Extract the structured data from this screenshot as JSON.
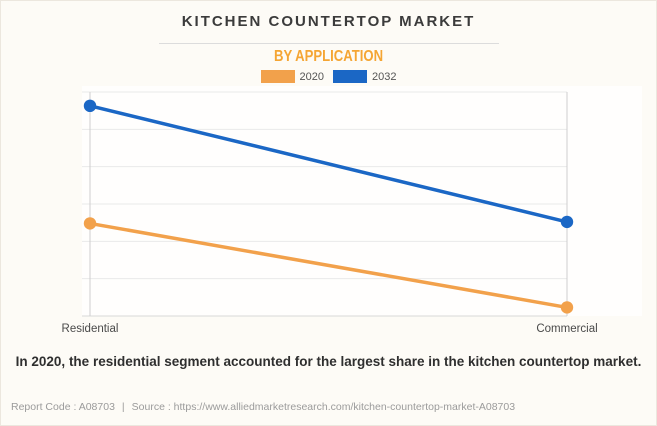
{
  "header": {
    "title": "KITCHEN COUNTERTOP MARKET",
    "subtitle": "BY APPLICATION"
  },
  "legend": [
    {
      "label": "2020",
      "color": "#F2A14B"
    },
    {
      "label": "2032",
      "color": "#1B67C5"
    }
  ],
  "chart_data": {
    "type": "line",
    "categories": [
      "Residential",
      "Commercial"
    ],
    "series": [
      {
        "name": "2020",
        "color": "#F2A14B",
        "values": [
          2.48,
          0.23
        ]
      },
      {
        "name": "2032",
        "color": "#1B67C5",
        "values": [
          5.63,
          2.52
        ]
      }
    ],
    "title": "KITCHEN COUNTERTOP MARKET",
    "subtitle": "BY APPLICATION",
    "xlabel": "",
    "ylabel": "",
    "ylim": [
      0,
      6
    ],
    "y_axis_labels_shown": false,
    "grid": true,
    "legend_position": "top",
    "marker": "circle",
    "axis_note": "y-axis has no printed tick labels; values estimated in gridline units (1 unit per horizontal gridline interval)"
  },
  "insight": {
    "text": "In 2020, the residential segment accounted for the largest share in the kitchen countertop market."
  },
  "footer": {
    "report_code": "Report Code : A08703",
    "separator": "|",
    "source": "Source : https://www.alliedmarketresearch.com/kitchen-countertop-market-A08703"
  }
}
